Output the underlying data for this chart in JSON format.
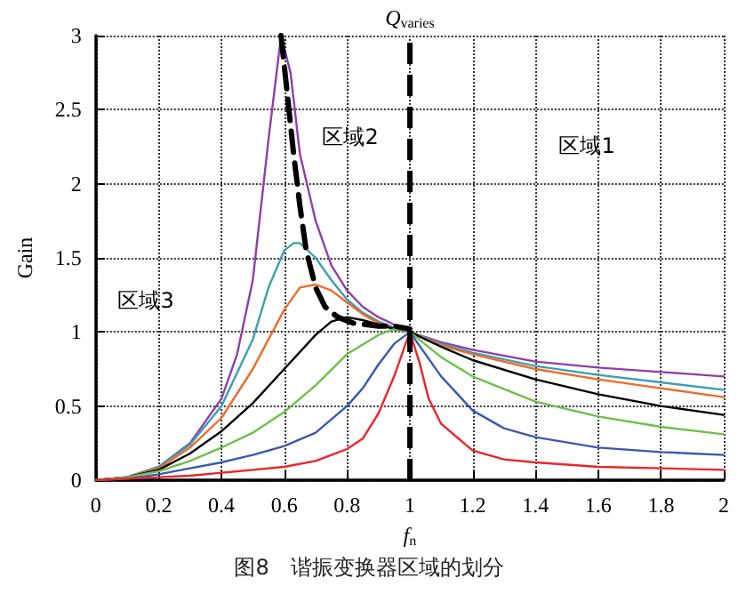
{
  "chart_data": {
    "type": "line",
    "xlabel": "f$_{n}$",
    "ylabel": "Gain",
    "xlim": [
      0,
      2
    ],
    "xticks": [
      0,
      0.2,
      0.4,
      0.6,
      0.8,
      1,
      1.2,
      1.4,
      1.6,
      1.8,
      2
    ],
    "ylim": [
      0,
      3
    ],
    "yticks": [
      0,
      0.5,
      1,
      1.5,
      2,
      2.5,
      3
    ],
    "grid": true,
    "marker": "none",
    "ref_lines": [
      {
        "axis": "x",
        "value": 1,
        "label": "Q$_{varies}$",
        "color": "#000000",
        "line_style": "dashed"
      }
    ],
    "annotations": [
      "区域1",
      "区域2",
      "区域3",
      "图8　谐振变换器区域的划分"
    ],
    "series": [
      {
        "color": "#8e3fa8",
        "x": [
          0,
          0.1,
          0.2,
          0.3,
          0.4,
          0.45,
          0.5,
          0.55,
          0.59,
          0.62,
          0.65,
          0.7,
          0.75,
          0.8,
          0.85,
          0.9,
          0.95,
          1,
          1.1,
          1.2,
          1.4,
          1.6,
          1.8,
          2
        ],
        "values": [
          0,
          0.02,
          0.09,
          0.25,
          0.55,
          0.85,
          1.35,
          2.3,
          3.0,
          2.75,
          2.2,
          1.75,
          1.45,
          1.28,
          1.17,
          1.1,
          1.05,
          1.0,
          0.93,
          0.88,
          0.8,
          0.76,
          0.73,
          0.7
        ]
      },
      {
        "color": "#3aa0b0",
        "x": [
          0,
          0.1,
          0.2,
          0.3,
          0.4,
          0.5,
          0.55,
          0.6,
          0.63,
          0.65,
          0.7,
          0.75,
          0.8,
          0.85,
          0.9,
          0.95,
          1,
          1.1,
          1.2,
          1.4,
          1.6,
          1.8,
          2
        ],
        "values": [
          0,
          0.02,
          0.09,
          0.24,
          0.5,
          0.95,
          1.3,
          1.55,
          1.6,
          1.6,
          1.5,
          1.35,
          1.22,
          1.13,
          1.07,
          1.03,
          1.0,
          0.92,
          0.86,
          0.77,
          0.71,
          0.66,
          0.61
        ]
      },
      {
        "color": "#f06a2a",
        "x": [
          0,
          0.1,
          0.2,
          0.3,
          0.4,
          0.5,
          0.55,
          0.6,
          0.65,
          0.7,
          0.75,
          0.8,
          0.85,
          0.9,
          0.95,
          1,
          1.1,
          1.2,
          1.4,
          1.6,
          1.8,
          2
        ],
        "values": [
          0,
          0.02,
          0.08,
          0.22,
          0.42,
          0.75,
          0.95,
          1.15,
          1.3,
          1.32,
          1.28,
          1.2,
          1.12,
          1.06,
          1.02,
          1.0,
          0.91,
          0.85,
          0.75,
          0.68,
          0.62,
          0.56
        ]
      },
      {
        "color": "#000000",
        "x": [
          0,
          0.1,
          0.2,
          0.3,
          0.4,
          0.5,
          0.6,
          0.7,
          0.75,
          0.8,
          0.85,
          0.9,
          0.95,
          1,
          1.1,
          1.2,
          1.4,
          1.6,
          1.8,
          2
        ],
        "values": [
          0,
          0.02,
          0.07,
          0.18,
          0.33,
          0.52,
          0.75,
          0.98,
          1.07,
          1.1,
          1.08,
          1.05,
          1.02,
          1.0,
          0.9,
          0.81,
          0.68,
          0.58,
          0.5,
          0.44
        ]
      },
      {
        "color": "#6cc04a",
        "x": [
          0,
          0.1,
          0.2,
          0.3,
          0.4,
          0.5,
          0.6,
          0.7,
          0.8,
          0.9,
          0.95,
          1,
          1.1,
          1.2,
          1.4,
          1.6,
          1.8,
          2
        ],
        "values": [
          0,
          0.02,
          0.06,
          0.13,
          0.22,
          0.32,
          0.46,
          0.64,
          0.85,
          0.98,
          1.02,
          1.0,
          0.83,
          0.7,
          0.53,
          0.43,
          0.36,
          0.31
        ]
      },
      {
        "color": "#3a58b0",
        "x": [
          0,
          0.1,
          0.2,
          0.3,
          0.4,
          0.5,
          0.6,
          0.7,
          0.8,
          0.85,
          0.9,
          0.95,
          1,
          1.05,
          1.1,
          1.2,
          1.3,
          1.4,
          1.6,
          1.8,
          2
        ],
        "values": [
          0,
          0.01,
          0.04,
          0.08,
          0.12,
          0.17,
          0.23,
          0.32,
          0.5,
          0.62,
          0.78,
          0.92,
          1.0,
          0.85,
          0.7,
          0.47,
          0.35,
          0.29,
          0.22,
          0.19,
          0.17
        ]
      },
      {
        "color": "#e8262a",
        "x": [
          0,
          0.1,
          0.2,
          0.3,
          0.4,
          0.5,
          0.6,
          0.7,
          0.8,
          0.85,
          0.9,
          0.95,
          1,
          1.03,
          1.06,
          1.1,
          1.2,
          1.3,
          1.4,
          1.6,
          1.8,
          2
        ],
        "values": [
          0,
          0.01,
          0.02,
          0.03,
          0.05,
          0.07,
          0.09,
          0.13,
          0.21,
          0.28,
          0.45,
          0.7,
          1.0,
          0.8,
          0.55,
          0.38,
          0.2,
          0.14,
          0.12,
          0.09,
          0.08,
          0.07
        ]
      },
      {
        "color": "#000000",
        "line_style": "dashed",
        "x": [
          0.59,
          0.61,
          0.63,
          0.65,
          0.67,
          0.7,
          0.73,
          0.77,
          0.82,
          0.9,
          0.95,
          1.0
        ],
        "values": [
          3.0,
          2.6,
          2.2,
          1.85,
          1.55,
          1.3,
          1.17,
          1.1,
          1.06,
          1.04,
          1.04,
          1.02
        ]
      }
    ]
  }
}
